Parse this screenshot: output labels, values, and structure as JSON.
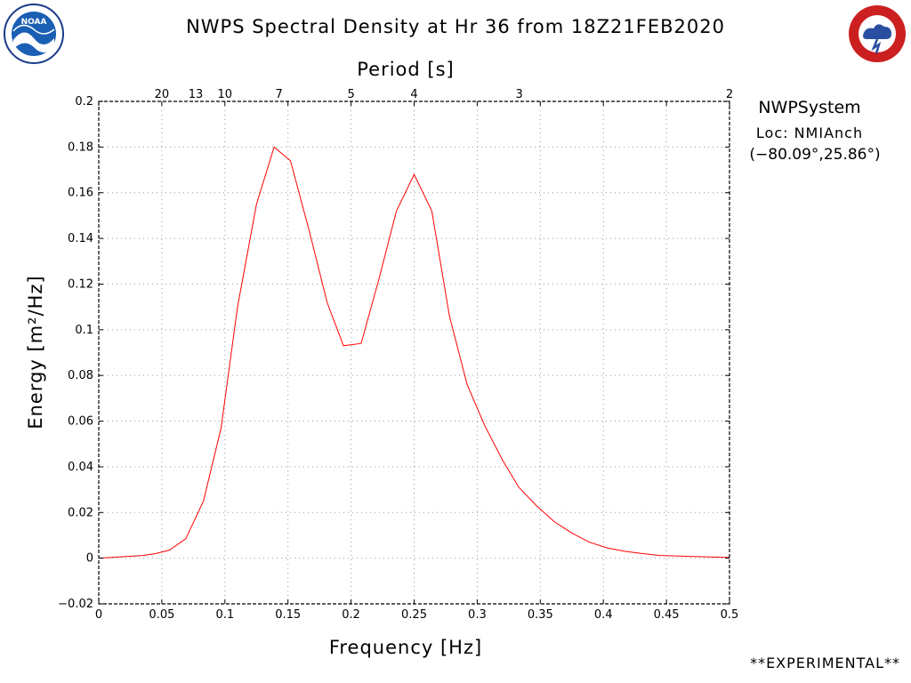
{
  "header": {
    "title": "NWPS Spectral Density at Hr 36 from 18Z21FEB2020",
    "left_logo": "noaa-logo",
    "right_logo": "national-weather-service-logo"
  },
  "station": {
    "name": "NWPSystem",
    "location": "Loc: NMIAnch",
    "coords": "(−80.09°,25.86°)"
  },
  "footer": {
    "experimental": "**EXPERIMENTAL**"
  },
  "colors": {
    "series": "#ff0000",
    "grid": "#999999",
    "axis": "#000000"
  },
  "chart_data": {
    "type": "line",
    "title": "NWPS Spectral Density at Hr 36 from 18Z21FEB2020",
    "xlabel": "Frequency [Hz]",
    "ylabel": "Energy [m²/Hz]",
    "top_axis_label": "Period [s]",
    "xlim": [
      0,
      0.5
    ],
    "ylim": [
      -0.02,
      0.2
    ],
    "grid": true,
    "x_ticks": [
      0,
      0.05,
      0.1,
      0.15,
      0.2,
      0.25,
      0.3,
      0.35,
      0.4,
      0.45,
      0.5
    ],
    "x_tick_labels": [
      "0",
      "0.05",
      "0.1",
      "0.15",
      "0.2",
      "0.25",
      "0.3",
      "0.35",
      "0.4",
      "0.45",
      "0.5"
    ],
    "y_ticks": [
      -0.02,
      0,
      0.02,
      0.04,
      0.06,
      0.08,
      0.1,
      0.12,
      0.14,
      0.16,
      0.18,
      0.2
    ],
    "y_tick_labels": [
      "−0.02",
      "0",
      "0.02",
      "0.04",
      "0.06",
      "0.08",
      "0.1",
      "0.12",
      "0.14",
      "0.16",
      "0.18",
      "0.2"
    ],
    "period_ticks": [
      {
        "freq": 0.05,
        "label": "20"
      },
      {
        "freq": 0.0769,
        "label": "13"
      },
      {
        "freq": 0.1,
        "label": "10"
      },
      {
        "freq": 0.1429,
        "label": "7"
      },
      {
        "freq": 0.2,
        "label": "5"
      },
      {
        "freq": 0.25,
        "label": "4"
      },
      {
        "freq": 0.3333,
        "label": "3"
      },
      {
        "freq": 0.5,
        "label": "2"
      }
    ],
    "series": [
      {
        "color": "#ff0000",
        "x": [
          0,
          0.035,
          0.045,
          0.056,
          0.069,
          0.083,
          0.097,
          0.11,
          0.125,
          0.139,
          0.152,
          0.167,
          0.181,
          0.194,
          0.208,
          0.222,
          0.236,
          0.25,
          0.264,
          0.278,
          0.292,
          0.306,
          0.32,
          0.333,
          0.347,
          0.361,
          0.375,
          0.389,
          0.403,
          0.417,
          0.431,
          0.445,
          0.5
        ],
        "y": [
          0,
          0.0012,
          0.002,
          0.0035,
          0.0085,
          0.025,
          0.057,
          0.11,
          0.155,
          0.18,
          0.174,
          0.143,
          0.112,
          0.093,
          0.094,
          0.122,
          0.152,
          0.168,
          0.152,
          0.106,
          0.076,
          0.058,
          0.043,
          0.031,
          0.023,
          0.016,
          0.011,
          0.007,
          0.0045,
          0.003,
          0.002,
          0.0012,
          0.0003
        ]
      }
    ]
  }
}
